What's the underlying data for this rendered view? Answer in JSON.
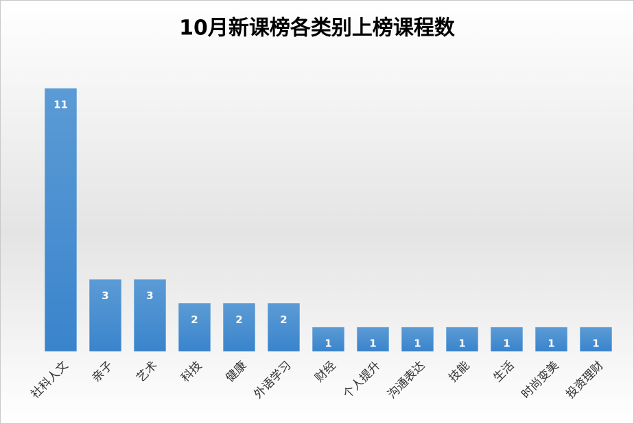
{
  "chart_data": {
    "type": "bar",
    "title": "10月新课榜各类别上榜课程数",
    "categories": [
      "社科人文",
      "亲子",
      "艺术",
      "科技",
      "健康",
      "外语学习",
      "财经",
      "个人提升",
      "沟通表达",
      "技能",
      "生活",
      "时尚变美",
      "投资理财"
    ],
    "values": [
      11,
      3,
      3,
      2,
      2,
      2,
      1,
      1,
      1,
      1,
      1,
      1,
      1
    ],
    "color": "#5b9bd5",
    "ylim": [
      0,
      11
    ]
  }
}
